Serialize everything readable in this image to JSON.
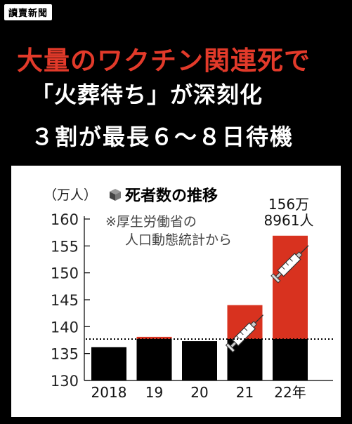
{
  "logo": "讀賣新聞",
  "headline": {
    "line1": "大量のワクチン関連死で",
    "line2": "「火葬待ち」が深刻化",
    "line3": "３割が最長６～８日待機"
  },
  "chart_data": {
    "type": "bar",
    "title": "死者数の推移",
    "title_icon": "cube-icon",
    "source": [
      "※厚生労働省の",
      "人口動態統計から"
    ],
    "ylabel": "（万人）",
    "ylim": [
      130,
      160
    ],
    "yticks": [
      130,
      135,
      140,
      145,
      150,
      155,
      160
    ],
    "categories": [
      "2018",
      "19",
      "20",
      "21",
      "22年"
    ],
    "values": [
      136.2,
      138.1,
      137.3,
      144.0,
      156.9
    ],
    "baseline_reference": 137.7,
    "highlight_color": "#d8321f",
    "bar_color": "#000000",
    "syringe_on": [
      "21",
      "22年"
    ],
    "data_label": {
      "category": "22年",
      "lines": [
        "156万",
        "8961人"
      ]
    }
  }
}
